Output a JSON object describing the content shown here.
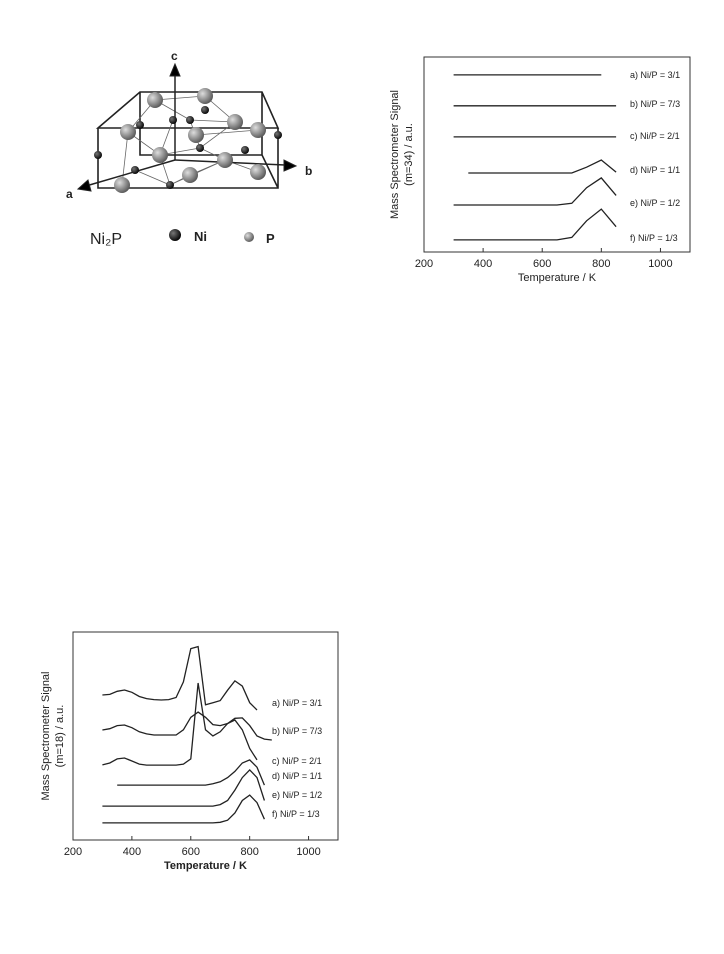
{
  "diagram": {
    "axis_labels": [
      "c",
      "b",
      "a"
    ],
    "formula": "Ni₂P",
    "legend": [
      "Ni",
      "P"
    ]
  },
  "chart_data": [
    {
      "type": "line",
      "ylabel": [
        "Mass Spectrometer Signal",
        "(m=34)  / a.u."
      ],
      "xlabel": "Temperature / K",
      "x": [
        300,
        350,
        400,
        450,
        500,
        550,
        600,
        650,
        700,
        750,
        800,
        850
      ],
      "xlim": [
        200,
        1100
      ],
      "xticks": [
        200,
        400,
        600,
        800,
        1000
      ],
      "ylim": [
        0,
        10
      ],
      "series": [
        {
          "name": "a) Ni/P = 3/1",
          "color": "#222222",
          "values": [
            9.08,
            9.08,
            9.08,
            9.08,
            9.08,
            9.08,
            9.08,
            9.08,
            9.08,
            9.08,
            9.08,
            null
          ]
        },
        {
          "name": "b) Ni/P = 7/3",
          "color": "#222222",
          "values": [
            7.5,
            7.5,
            7.5,
            7.5,
            7.5,
            7.5,
            7.5,
            7.5,
            7.5,
            7.5,
            7.5,
            7.5
          ]
        },
        {
          "name": "c) Ni/P = 2/1",
          "color": "#222222",
          "values": [
            5.9,
            5.9,
            5.9,
            5.9,
            5.9,
            5.9,
            5.9,
            5.9,
            5.9,
            5.9,
            5.9,
            5.9
          ]
        },
        {
          "name": "d) Ni/P = 1/1",
          "color": "#222222",
          "values": [
            null,
            4.05,
            4.05,
            4.05,
            4.05,
            4.05,
            4.05,
            4.05,
            4.05,
            4.35,
            4.72,
            4.1
          ]
        },
        {
          "name": "e) Ni/P = 1/2",
          "color": "#222222",
          "values": [
            2.41,
            2.41,
            2.41,
            2.41,
            2.41,
            2.41,
            2.41,
            2.41,
            2.5,
            3.3,
            3.8,
            2.9
          ]
        },
        {
          "name": "f) Ni/P = 1/3",
          "color": "#222222",
          "values": [
            0.62,
            0.62,
            0.62,
            0.62,
            0.62,
            0.62,
            0.62,
            0.62,
            0.75,
            1.6,
            2.2,
            1.3
          ]
        }
      ]
    },
    {
      "type": "line",
      "ylabel": [
        "Mass Spectrometer Signal",
        "(m=18)  / a.u."
      ],
      "xlabel": "Temperature / K",
      "x": [
        300,
        325,
        350,
        375,
        400,
        425,
        450,
        475,
        500,
        525,
        550,
        575,
        600,
        625,
        650,
        675,
        700,
        725,
        750,
        775,
        800,
        825,
        850,
        875
      ],
      "xlim": [
        200,
        1100
      ],
      "xticks": [
        200,
        400,
        600,
        800,
        1000
      ],
      "ylim": [
        0,
        10
      ],
      "series": [
        {
          "name": "a) Ni/P = 3/1",
          "color": "#222222",
          "values": [
            6.97,
            7.0,
            7.15,
            7.21,
            7.1,
            6.9,
            6.8,
            6.75,
            6.73,
            6.75,
            6.85,
            7.6,
            9.2,
            9.3,
            6.5,
            6.6,
            6.7,
            7.2,
            7.65,
            7.4,
            6.6,
            6.25,
            null,
            null
          ]
        },
        {
          "name": "b) Ni/P = 7/3",
          "color": "#222222",
          "values": [
            5.29,
            5.35,
            5.5,
            5.53,
            5.4,
            5.2,
            5.1,
            5.05,
            5.05,
            5.05,
            5.05,
            5.3,
            5.9,
            6.15,
            5.9,
            5.55,
            5.5,
            5.6,
            5.85,
            5.87,
            5.5,
            5.0,
            4.85,
            4.81
          ]
        },
        {
          "name": "c) Ni/P = 2/1",
          "color": "#222222",
          "values": [
            3.61,
            3.7,
            3.9,
            3.94,
            3.8,
            3.65,
            3.6,
            3.6,
            3.6,
            3.6,
            3.6,
            3.65,
            3.9,
            7.55,
            5.3,
            5.0,
            5.2,
            5.6,
            5.77,
            5.3,
            4.4,
            3.85,
            null,
            null
          ]
        },
        {
          "name": "d) Ni/P = 1/1",
          "color": "#222222",
          "values": [
            null,
            null,
            2.64,
            2.64,
            2.64,
            2.64,
            2.64,
            2.64,
            2.64,
            2.64,
            2.64,
            2.64,
            2.64,
            2.64,
            2.64,
            2.7,
            2.8,
            3.0,
            3.3,
            3.7,
            3.85,
            3.5,
            2.64,
            null
          ]
        },
        {
          "name": "e) Ni/P = 1/2",
          "color": "#222222",
          "values": [
            1.63,
            1.63,
            1.63,
            1.63,
            1.63,
            1.63,
            1.63,
            1.63,
            1.63,
            1.63,
            1.63,
            1.63,
            1.63,
            1.63,
            1.63,
            1.63,
            1.7,
            1.9,
            2.4,
            3.0,
            3.37,
            3.0,
            1.9,
            null
          ]
        },
        {
          "name": "f) Ni/P = 1/3",
          "color": "#222222",
          "values": [
            0.82,
            0.82,
            0.82,
            0.82,
            0.82,
            0.82,
            0.82,
            0.82,
            0.82,
            0.82,
            0.82,
            0.82,
            0.82,
            0.82,
            0.82,
            0.82,
            0.85,
            0.95,
            1.3,
            1.9,
            2.16,
            1.8,
            1.0,
            null
          ]
        }
      ]
    }
  ]
}
